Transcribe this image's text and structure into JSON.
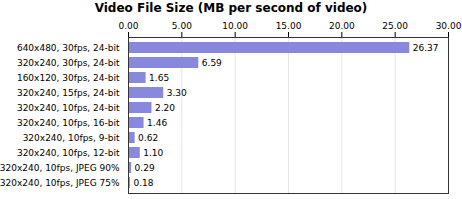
{
  "chart_data": {
    "type": "bar",
    "orientation": "horizontal",
    "title": "Video File Size (MB per second of video)",
    "categories": [
      "640x480, 30fps, 24-bit",
      "320x240, 30fps, 24-bit",
      "160x120, 30fps, 24-bit",
      "320x240, 15fps, 24-bit",
      "320x240, 10fps, 24-bit",
      "320x240, 10fps, 16-bit",
      "  320x240, 10fps, 9-bit",
      "320x240, 10fps, 12-bit",
      "320x240, 10fps, JPEG 90%",
      "320x240, 10fps, JPEG 75%"
    ],
    "values": [
      26.37,
      6.59,
      1.65,
      3.3,
      2.2,
      1.46,
      0.62,
      1.1,
      0.29,
      0.18
    ],
    "value_labels": [
      "26.37",
      "6.59",
      "1.65",
      "3.30",
      "2.20",
      "1.46",
      "0.62",
      "1.10",
      "0.29",
      "0.18"
    ],
    "color": "#8888dd",
    "xlim": [
      0,
      30
    ],
    "xticks": [
      {
        "value": 0,
        "label": "0.00"
      },
      {
        "value": 5,
        "label": "5.00"
      },
      {
        "value": 10,
        "label": "10.00"
      },
      {
        "value": 15,
        "label": "15.00"
      },
      {
        "value": 20,
        "label": "20.00"
      },
      {
        "value": 25,
        "label": "25.00"
      },
      {
        "value": 30,
        "label": "30.00"
      }
    ],
    "grid": true,
    "data_labels": true
  }
}
